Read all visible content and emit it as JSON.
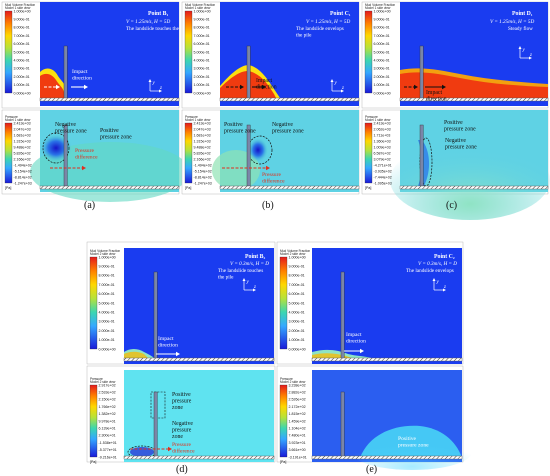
{
  "panels": {
    "a": {
      "label": "(a)",
      "top": {
        "header": [
          "Mud Volume Fraction",
          "Model 1 side view"
        ],
        "ticks": [
          "1.000e+00",
          "9.000e-01",
          "8.000e-01",
          "7.000e-01",
          "6.000e-01",
          "5.000e-01",
          "4.000e-01",
          "3.000e-01",
          "2.000e-01",
          "1.000e-01",
          "0.000e+00"
        ],
        "point": "Point B₁",
        "params": "V = 1.25m/s, H = 5D",
        "desc": "The landslide touches the pile",
        "annotations": [
          "Impact",
          "direction"
        ]
      },
      "bottom": {
        "header": [
          "Pressure",
          "Model 1 side view"
        ],
        "ticks": [
          "2.413e+03",
          "2.047e+03",
          "1.681e+03",
          "1.315e+03",
          "9.488e+02",
          "5.826e+02",
          "2.166e+02",
          "-1.494e+02",
          "-5.154e+02",
          "-8.814e+02",
          "-1.247e+03"
        ],
        "unit": "[Pa]",
        "annotations": {
          "negative": [
            "Negative",
            "pressure zone"
          ],
          "positive": [
            "Positive",
            "pressure zone"
          ],
          "difference": [
            "Pressure",
            "difference"
          ]
        }
      }
    },
    "b": {
      "label": "(b)",
      "top": {
        "header": [
          "Mud Volume Fraction",
          "Model 1 side view"
        ],
        "ticks": [
          "1.000e+00",
          "9.000e-01",
          "8.000e-01",
          "7.000e-01",
          "6.000e-01",
          "5.000e-01",
          "4.000e-01",
          "3.000e-01",
          "2.000e-01",
          "1.000e-01",
          "0.000e+00"
        ],
        "point": "Point C₁",
        "params": "V = 1.25m/s, H = 5D",
        "desc": [
          "The landslide envelops",
          "the pile"
        ],
        "annotations": [
          "Impact",
          "direction"
        ]
      },
      "bottom": {
        "header": [
          "Pressure",
          "Model 1 side view"
        ],
        "ticks": [
          "2.413e+03",
          "2.047e+03",
          "1.681e+03",
          "1.315e+03",
          "9.488e+02",
          "5.826e+02",
          "2.166e+02",
          "-1.494e+02",
          "-5.154e+02",
          "-8.814e+02",
          "-1.247e+03"
        ],
        "unit": "[Pa]",
        "annotations": {
          "positive_left": [
            "Positive",
            "pressure zone"
          ],
          "negative": [
            "Negative",
            "pressure zone"
          ],
          "difference": [
            "Pressure",
            "difference"
          ]
        }
      }
    },
    "c": {
      "label": "(c)",
      "top": {
        "header": [
          "Mud Volume Fraction",
          "Model 1 side view"
        ],
        "ticks": [
          "1.000e+00",
          "9.000e-01",
          "8.000e-01",
          "7.000e-01",
          "6.000e-01",
          "5.000e-01",
          "4.000e-01",
          "3.000e-01",
          "2.000e-01",
          "1.000e-01",
          "0.000e+00"
        ],
        "point": "Point D₁",
        "params": "V = 1.25m/s, H = 5D",
        "desc": "Steady flow",
        "annotations": [
          "Impact",
          "direction"
        ]
      },
      "bottom": {
        "header": [
          "Pressure",
          "Model 1 side view"
        ],
        "ticks": [
          "2.413e+03",
          "2.062e+03",
          "1.711e+03",
          "1.360e+03",
          "1.009e+03",
          "6.587e+02",
          "3.079e+02",
          "-4.271e+01",
          "-3.935e+02",
          "-7.444e+02",
          "-1.095e+03"
        ],
        "unit": "[Pa]",
        "annotations": {
          "positive": [
            "Positive",
            "pressure zone"
          ],
          "negative": [
            "Negative",
            "pressure zone"
          ]
        }
      }
    },
    "d": {
      "label": "(d)",
      "top": {
        "header": [
          "Mud Volume Fraction",
          "Model 2 side view"
        ],
        "ticks": [
          "1.000e+00",
          "9.000e-01",
          "8.000e-01",
          "7.000e-01",
          "6.000e-01",
          "5.000e-01",
          "4.000e-01",
          "3.000e-01",
          "2.000e-01",
          "1.000e-01",
          "0.000e+00"
        ],
        "point": "Point B₂",
        "params": "V = 0.3m/s, H = D",
        "desc": [
          "The landslide touches",
          "the pile"
        ],
        "annotations": [
          "Impact",
          "direction"
        ]
      },
      "bottom": {
        "header": [
          "Pressure",
          "Model 2 side view"
        ],
        "ticks": [
          "2.917e+02",
          "2.533e+02",
          "2.150e+02",
          "1.766e+02",
          "1.382e+02",
          "9.978e+01",
          "6.139e+01",
          "2.300e+01",
          "-1.538e+01",
          "-5.377e+01",
          "-9.216e+01"
        ],
        "unit": "[Pa]",
        "annotations": {
          "positive": [
            "Positive",
            "pressure",
            "zone"
          ],
          "negative": [
            "Negative",
            "pressure",
            "zone"
          ],
          "difference": [
            "Pressure",
            "difference"
          ]
        }
      }
    },
    "e": {
      "label": "(e)",
      "top": {
        "header": [
          "Mud Volume Fraction",
          "Model 2 side view"
        ],
        "ticks": [
          "1.000e+00",
          "9.000e-01",
          "8.000e-01",
          "7.000e-01",
          "6.000e-01",
          "5.000e-01",
          "4.000e-01",
          "3.000e-01",
          "2.000e-01",
          "1.000e-01",
          "0.000e+00"
        ],
        "point": "Point C₂",
        "params": "V = 0.3m/s, H = D",
        "desc": "The landslide envelops",
        "annotations": [
          "Impact",
          "direction"
        ]
      },
      "bottom": {
        "header": [
          "Pressure",
          "Model 2 side view"
        ],
        "ticks": [
          "3.238e+02",
          "2.882e+02",
          "2.526e+02",
          "2.172e+02",
          "1.815e+02",
          "1.459e+02",
          "1.104e+02",
          "7.480e+01",
          "3.923e+01",
          "3.661e+00",
          "-3.191e+01"
        ],
        "unit": "[Pa]",
        "annotations": {
          "positive": [
            "Positive",
            "pressure zone"
          ]
        }
      }
    }
  },
  "axis_labels": {
    "y": "y",
    "z": "z"
  },
  "colors": {
    "blue": "#1a3cf0",
    "red": "#f03b10",
    "ground": "#555555"
  }
}
